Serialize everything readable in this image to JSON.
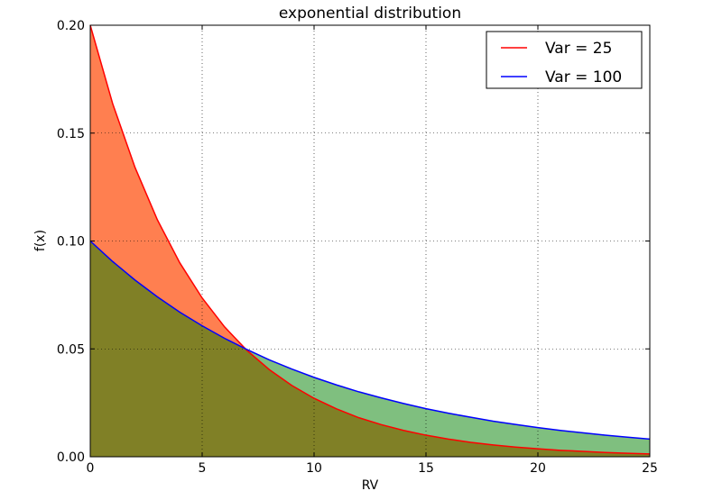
{
  "chart_data": {
    "type": "area",
    "title": "exponential distribution",
    "xlabel": "RV",
    "ylabel": "f(x)",
    "xlim": [
      0,
      25
    ],
    "ylim": [
      0,
      0.2
    ],
    "xticks": [
      0,
      5,
      10,
      15,
      20,
      25
    ],
    "xtick_labels": [
      "0",
      "5",
      "10",
      "15",
      "20",
      "25"
    ],
    "yticks": [
      0,
      0.05,
      0.1,
      0.15,
      0.2
    ],
    "ytick_labels": [
      "0.00",
      "0.05",
      "0.10",
      "0.15",
      "0.20"
    ],
    "grid": true,
    "legend_position": "top-right",
    "series": [
      {
        "name": "Var = 25",
        "line_color": "#ff0000",
        "fill_color": "#ff7f50",
        "x": [
          0,
          1,
          2,
          3,
          4,
          5,
          6,
          7,
          8,
          9,
          10,
          11,
          12,
          13,
          14,
          15,
          16,
          17,
          18,
          19,
          20,
          21,
          22,
          23,
          24,
          25
        ],
        "y": [
          0.2,
          0.1637,
          0.1341,
          0.1098,
          0.0899,
          0.0736,
          0.0602,
          0.0493,
          0.0404,
          0.0331,
          0.0271,
          0.0222,
          0.0181,
          0.0149,
          0.0122,
          0.01,
          0.0082,
          0.0067,
          0.0055,
          0.0045,
          0.0037,
          0.003,
          0.0025,
          0.002,
          0.0016,
          0.0013
        ]
      },
      {
        "name": "Var = 100",
        "line_color": "#0000ff",
        "fill_color": "#7fbf7f",
        "x": [
          0,
          1,
          2,
          3,
          4,
          5,
          6,
          7,
          8,
          9,
          10,
          11,
          12,
          13,
          14,
          15,
          16,
          17,
          18,
          19,
          20,
          21,
          22,
          23,
          24,
          25
        ],
        "y": [
          0.1,
          0.0905,
          0.0819,
          0.0741,
          0.067,
          0.0607,
          0.0549,
          0.0497,
          0.0449,
          0.0407,
          0.0368,
          0.0333,
          0.0301,
          0.0273,
          0.0247,
          0.0223,
          0.0202,
          0.0183,
          0.0165,
          0.015,
          0.0135,
          0.0122,
          0.0111,
          0.01,
          0.0091,
          0.0082
        ]
      }
    ],
    "overlap_fill_color": "#808026"
  }
}
